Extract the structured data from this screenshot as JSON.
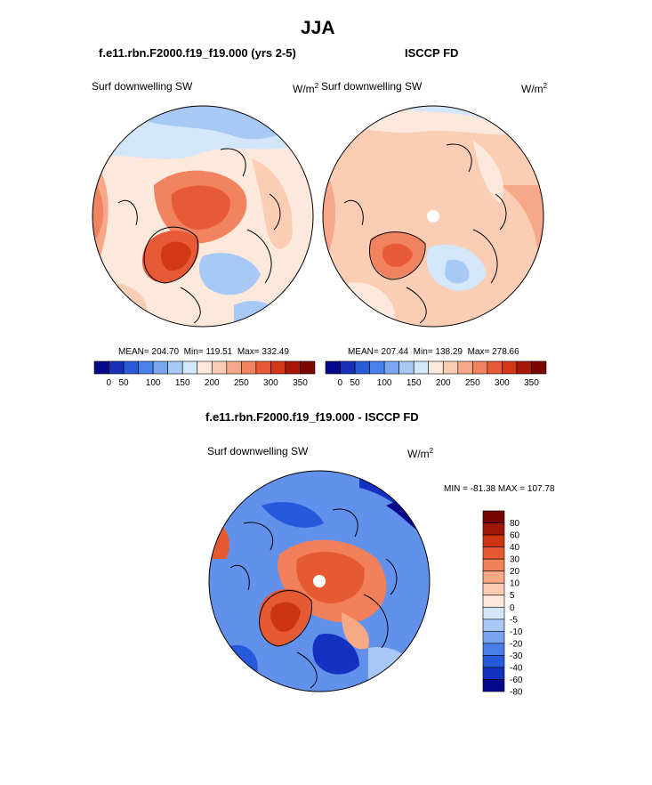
{
  "page_title": "JJA",
  "panels": [
    {
      "title": "f.e11.rbn.F2000.f19_f19.000 (yrs 2-5)",
      "variable_label": "Surf downwelling SW",
      "units": "W/m",
      "units_sup": "2",
      "stats": {
        "mean": "MEAN= 204.70",
        "min": "Min= 119.51",
        "max": "Max= 332.49"
      }
    },
    {
      "title": "ISCCP FD",
      "variable_label": "Surf downwelling SW",
      "units": "W/m",
      "units_sup": "2",
      "stats": {
        "mean": "MEAN= 207.44",
        "min": "Min= 138.29",
        "max": "Max= 278.66"
      }
    },
    {
      "title": "f.e11.rbn.F2000.f19_f19.000 - ISCCP FD",
      "variable_label": "Surf downwelling SW",
      "units": "W/m",
      "units_sup": "2",
      "stats": {
        "minmax": "MIN = -81.38 MAX = 107.78"
      }
    }
  ],
  "colors": {
    "abs_scale": [
      "#08088a",
      "#1830b8",
      "#2a5ad8",
      "#4a80ea",
      "#7aa6f0",
      "#a8c8f6",
      "#d4e6fa",
      "#fde8dc",
      "#fbcdb4",
      "#f7a888",
      "#f28360",
      "#e85a36",
      "#d23814",
      "#a81808",
      "#7a0800"
    ],
    "diff_scale": [
      "#08088a",
      "#1432c2",
      "#2658dc",
      "#4a7ee8",
      "#7aa4f0",
      "#a8c6f6",
      "#d6e6fa",
      "#fde8dc",
      "#fbccb2",
      "#f7a884",
      "#f2805a",
      "#e65a32",
      "#cc3412",
      "#a01608",
      "#780600"
    ],
    "land_outline": "#000000"
  },
  "chart_data": [
    {
      "type": "polar-stereographic-contour-map",
      "title": "f.e11.rbn.F2000.f19_f19.000 (yrs 2-5)",
      "variable": "Surf downwelling SW",
      "units": "W/m2",
      "mean": 204.7,
      "min": 119.51,
      "max": 332.49,
      "colorbar": {
        "orientation": "horizontal",
        "levels": [
          25,
          50,
          75,
          100,
          125,
          150,
          175,
          200,
          225,
          250,
          275,
          300,
          325,
          350
        ],
        "tick_labels": [
          "0",
          "50",
          "100",
          "150",
          "200",
          "250",
          "300",
          "350"
        ]
      }
    },
    {
      "type": "polar-stereographic-contour-map",
      "title": "ISCCP FD",
      "variable": "Surf downwelling SW",
      "units": "W/m2",
      "mean": 207.44,
      "min": 138.29,
      "max": 278.66,
      "colorbar": {
        "orientation": "horizontal",
        "levels": [
          25,
          50,
          75,
          100,
          125,
          150,
          175,
          200,
          225,
          250,
          275,
          300,
          325,
          350
        ],
        "tick_labels": [
          "0",
          "50",
          "100",
          "150",
          "200",
          "250",
          "300",
          "350"
        ]
      }
    },
    {
      "type": "polar-stereographic-contour-map",
      "title": "f.e11.rbn.F2000.f19_f19.000 - ISCCP FD",
      "variable": "Surf downwelling SW",
      "units": "W/m2",
      "min": -81.38,
      "max": 107.78,
      "colorbar": {
        "orientation": "vertical",
        "levels": [
          80,
          60,
          40,
          30,
          20,
          10,
          5,
          0,
          -5,
          -10,
          -20,
          -30,
          -40,
          -60,
          -80
        ],
        "tick_labels": [
          "80",
          "60",
          "40",
          "30",
          "20",
          "10",
          "5",
          "0",
          "-5",
          "-10",
          "-20",
          "-30",
          "-40",
          "-60",
          "-80"
        ]
      }
    }
  ]
}
